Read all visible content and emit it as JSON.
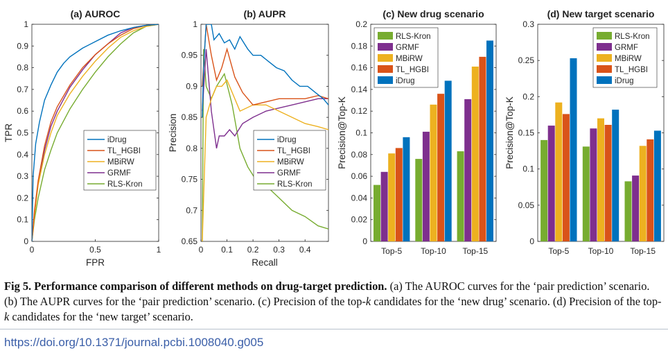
{
  "caption": {
    "label": "Fig 5.",
    "headline": "Performance comparison of different methods on drug-target prediction.",
    "body_html": " (a) The AUROC curves for the ‘pair prediction’ scenario. (b) The AUPR curves for the ‘pair prediction’ scenario. (c) Precision of the top-<i>k</i> candidates for the ‘new drug’ scenario. (d) Precision of the top-<i>k</i> candidates for the ‘new target’ scenario."
  },
  "doi_link": "https://doi.org/10.1371/journal.pcbi.1008040.g005",
  "colors": {
    "iDrug": "#0072bd",
    "TL_HGBI": "#d95319",
    "MBiRW": "#edb120",
    "GRMF": "#7e2f8e",
    "RLS-Kron": "#77ac30"
  },
  "chart_data": [
    {
      "id": "a",
      "type": "line",
      "title": "(a) AUROC",
      "xlabel": "FPR",
      "ylabel": "TPR",
      "xlim": [
        0,
        1
      ],
      "ylim": [
        0,
        1
      ],
      "xticks": [
        "0",
        "0.5",
        "1"
      ],
      "yticks": [
        "0",
        "0.1",
        "0.2",
        "0.3",
        "0.4",
        "0.5",
        "0.6",
        "0.7",
        "0.8",
        "0.9",
        "1"
      ],
      "legend_position": "bottom-right",
      "series": [
        {
          "name": "iDrug",
          "x": [
            0,
            0.01,
            0.03,
            0.06,
            0.1,
            0.15,
            0.2,
            0.25,
            0.3,
            0.4,
            0.5,
            0.6,
            0.7,
            0.8,
            0.9,
            1
          ],
          "y": [
            0,
            0.3,
            0.45,
            0.55,
            0.65,
            0.72,
            0.78,
            0.82,
            0.85,
            0.89,
            0.92,
            0.95,
            0.97,
            0.985,
            0.995,
            1
          ]
        },
        {
          "name": "TL_HGBI",
          "x": [
            0,
            0.02,
            0.05,
            0.1,
            0.15,
            0.2,
            0.3,
            0.4,
            0.5,
            0.6,
            0.7,
            0.8,
            0.9,
            1
          ],
          "y": [
            0,
            0.14,
            0.28,
            0.44,
            0.55,
            0.62,
            0.72,
            0.8,
            0.86,
            0.91,
            0.95,
            0.98,
            0.995,
            1
          ]
        },
        {
          "name": "MBiRW",
          "x": [
            0,
            0.02,
            0.05,
            0.1,
            0.15,
            0.2,
            0.3,
            0.4,
            0.5,
            0.6,
            0.7,
            0.8,
            0.9,
            1
          ],
          "y": [
            0,
            0.12,
            0.26,
            0.4,
            0.5,
            0.58,
            0.68,
            0.76,
            0.83,
            0.89,
            0.94,
            0.97,
            0.99,
            1
          ]
        },
        {
          "name": "GRMF",
          "x": [
            0,
            0.02,
            0.05,
            0.1,
            0.15,
            0.2,
            0.3,
            0.4,
            0.5,
            0.6,
            0.7,
            0.8,
            0.9,
            1
          ],
          "y": [
            0,
            0.13,
            0.27,
            0.42,
            0.53,
            0.6,
            0.71,
            0.79,
            0.86,
            0.91,
            0.96,
            0.985,
            0.995,
            1
          ]
        },
        {
          "name": "RLS-Kron",
          "x": [
            0,
            0.02,
            0.05,
            0.1,
            0.15,
            0.2,
            0.3,
            0.4,
            0.5,
            0.6,
            0.7,
            0.8,
            0.9,
            1
          ],
          "y": [
            0,
            0.1,
            0.2,
            0.33,
            0.42,
            0.5,
            0.61,
            0.7,
            0.78,
            0.85,
            0.91,
            0.96,
            0.99,
            1
          ]
        }
      ]
    },
    {
      "id": "b",
      "type": "line",
      "title": "(b) AUPR",
      "xlabel": "Recall",
      "ylabel": "Precision",
      "xlim": [
        0,
        0.49
      ],
      "ylim": [
        0.65,
        1
      ],
      "xticks": [
        "0",
        "0.1",
        "0.2",
        "0.3",
        "0.4"
      ],
      "yticks": [
        "0.65",
        "0.7",
        "0.75",
        "0.8",
        "0.85",
        "0.9",
        "0.95",
        "1"
      ],
      "legend_position": "bottom-right",
      "series": [
        {
          "name": "iDrug",
          "x": [
            0.005,
            0.01,
            0.02,
            0.04,
            0.05,
            0.07,
            0.09,
            0.11,
            0.13,
            0.15,
            0.18,
            0.2,
            0.23,
            0.26,
            0.29,
            0.32,
            0.35,
            0.38,
            0.41,
            0.44,
            0.47,
            0.49
          ],
          "y": [
            0.85,
            0.93,
            1.0,
            1.0,
            0.975,
            0.985,
            0.97,
            0.975,
            0.96,
            0.98,
            0.96,
            0.95,
            0.95,
            0.94,
            0.93,
            0.925,
            0.91,
            0.9,
            0.9,
            0.89,
            0.88,
            0.87
          ]
        },
        {
          "name": "TL_HGBI",
          "x": [
            0.005,
            0.02,
            0.04,
            0.06,
            0.08,
            0.1,
            0.13,
            0.16,
            0.2,
            0.25,
            0.3,
            0.35,
            0.4,
            0.45,
            0.49
          ],
          "y": [
            0.9,
            1.0,
            0.95,
            0.91,
            0.93,
            0.96,
            0.915,
            0.89,
            0.87,
            0.875,
            0.88,
            0.88,
            0.88,
            0.885,
            0.88
          ]
        },
        {
          "name": "MBiRW",
          "x": [
            0.005,
            0.02,
            0.04,
            0.06,
            0.08,
            0.1,
            0.12,
            0.15,
            0.2,
            0.25,
            0.3,
            0.35,
            0.4,
            0.45,
            0.49
          ],
          "y": [
            0.65,
            0.85,
            0.88,
            0.9,
            0.9,
            0.91,
            0.89,
            0.86,
            0.87,
            0.87,
            0.86,
            0.85,
            0.84,
            0.835,
            0.83
          ]
        },
        {
          "name": "GRMF",
          "x": [
            0.005,
            0.02,
            0.04,
            0.06,
            0.07,
            0.09,
            0.11,
            0.13,
            0.16,
            0.2,
            0.25,
            0.3,
            0.35,
            0.4,
            0.45,
            0.49
          ],
          "y": [
            0.86,
            0.96,
            0.86,
            0.8,
            0.82,
            0.82,
            0.83,
            0.82,
            0.84,
            0.85,
            0.86,
            0.865,
            0.87,
            0.875,
            0.88,
            0.88
          ]
        },
        {
          "name": "RLS-Kron",
          "x": [
            0.005,
            0.01,
            0.02,
            0.04,
            0.06,
            0.09,
            0.12,
            0.15,
            0.18,
            0.21,
            0.25,
            0.3,
            0.35,
            0.4,
            0.45,
            0.49
          ],
          "y": [
            0.65,
            0.96,
            0.9,
            0.88,
            0.9,
            0.92,
            0.87,
            0.8,
            0.77,
            0.75,
            0.74,
            0.72,
            0.7,
            0.69,
            0.675,
            0.67
          ]
        }
      ]
    },
    {
      "id": "c",
      "type": "bar",
      "title": "(c) New drug scenario",
      "xlabel": "",
      "ylabel": "Precision@Top-K",
      "categories": [
        "Top-5",
        "Top-10",
        "Top-15"
      ],
      "ylim": [
        0,
        0.2
      ],
      "yticks": [
        "0",
        "0.02",
        "0.04",
        "0.06",
        "0.08",
        "0.1",
        "0.12",
        "0.14",
        "0.16",
        "0.18",
        "0.2"
      ],
      "legend_position": "top-left",
      "series": [
        {
          "name": "RLS-Kron",
          "values": [
            0.052,
            0.076,
            0.083
          ]
        },
        {
          "name": "GRMF",
          "values": [
            0.064,
            0.101,
            0.131
          ]
        },
        {
          "name": "MBiRW",
          "values": [
            0.081,
            0.126,
            0.161
          ]
        },
        {
          "name": "TL_HGBI",
          "values": [
            0.086,
            0.136,
            0.17
          ]
        },
        {
          "name": "iDrug",
          "values": [
            0.096,
            0.148,
            0.185
          ]
        }
      ]
    },
    {
      "id": "d",
      "type": "bar",
      "title": "(d) New target scenario",
      "xlabel": "",
      "ylabel": "Precision@Top-K",
      "categories": [
        "Top-5",
        "Top-10",
        "Top-15"
      ],
      "ylim": [
        0,
        0.3
      ],
      "yticks": [
        "0",
        "0.05",
        "0.1",
        "0.15",
        "0.2",
        "0.25",
        "0.3"
      ],
      "legend_position": "top-right",
      "series": [
        {
          "name": "RLS-Kron",
          "values": [
            0.14,
            0.131,
            0.083
          ]
        },
        {
          "name": "GRMF",
          "values": [
            0.16,
            0.156,
            0.091
          ]
        },
        {
          "name": "MBiRW",
          "values": [
            0.192,
            0.17,
            0.132
          ]
        },
        {
          "name": "TL_HGBI",
          "values": [
            0.176,
            0.161,
            0.141
          ]
        },
        {
          "name": "iDrug",
          "values": [
            0.253,
            0.182,
            0.153
          ]
        }
      ]
    }
  ]
}
